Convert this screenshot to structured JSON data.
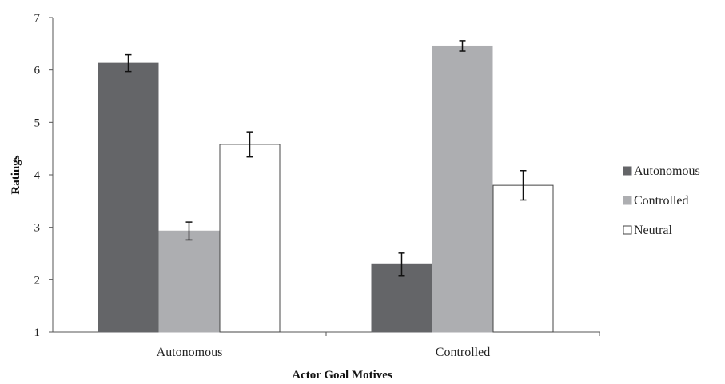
{
  "chart_data": {
    "type": "bar",
    "title": "",
    "xlabel": "Actor Goal Motives",
    "ylabel": "Ratings",
    "ylim": [
      1,
      7
    ],
    "yticks": [
      1,
      2,
      3,
      4,
      5,
      6,
      7
    ],
    "grid": false,
    "legend_position": "right",
    "categories": [
      "Autonomous",
      "Controlled"
    ],
    "series": [
      {
        "name": "Autonomous",
        "color": "#646568",
        "values": [
          6.13,
          2.29
        ],
        "errors": [
          0.16,
          0.22
        ]
      },
      {
        "name": "Controlled",
        "color": "#adaeb1",
        "values": [
          2.93,
          6.46
        ],
        "errors": [
          0.17,
          0.1
        ]
      },
      {
        "name": "Neutral",
        "color": "#ffffff",
        "values": [
          4.58,
          3.8
        ],
        "errors": [
          0.24,
          0.28
        ]
      }
    ]
  }
}
